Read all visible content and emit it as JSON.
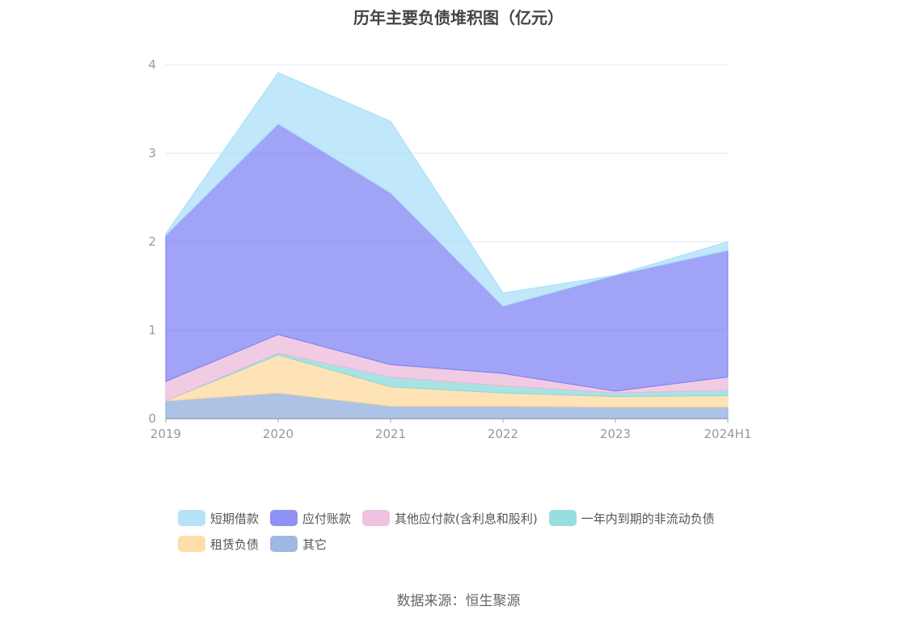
{
  "chart_data": {
    "type": "area",
    "stacked": true,
    "title": "历年主要负债堆积图（亿元）",
    "categories": [
      "2019",
      "2020",
      "2021",
      "2022",
      "2023",
      "2024H1"
    ],
    "ylim": [
      0,
      4
    ],
    "yticks": [
      "0",
      "1",
      "2",
      "3",
      "4"
    ],
    "grid": true,
    "legend_position": "bottom",
    "series": [
      {
        "name": "其它",
        "color": "#8eacdc",
        "values": [
          0.2,
          0.29,
          0.14,
          0.14,
          0.13,
          0.13
        ]
      },
      {
        "name": "租赁负债",
        "color": "#fdd89a",
        "values": [
          0.0,
          0.43,
          0.22,
          0.15,
          0.12,
          0.13
        ]
      },
      {
        "name": "一年内到期的非流动负债",
        "color": "#87d8d8",
        "values": [
          0.0,
          0.02,
          0.11,
          0.08,
          0.04,
          0.06
        ]
      },
      {
        "name": "其他应付款(含利息和股利)",
        "color": "#ebb7da",
        "values": [
          0.22,
          0.21,
          0.14,
          0.14,
          0.02,
          0.15
        ]
      },
      {
        "name": "应付账款",
        "color": "#7b7ff2",
        "values": [
          1.65,
          2.38,
          1.94,
          0.76,
          1.31,
          1.43
        ]
      },
      {
        "name": "短期借款",
        "color": "#a8def8",
        "values": [
          0.02,
          0.58,
          0.81,
          0.15,
          0.0,
          0.1
        ]
      }
    ],
    "legend_order": [
      "短期借款",
      "应付账款",
      "其他应付款(含利息和股利)",
      "一年内到期的非流动负债",
      "租赁负债",
      "其它"
    ]
  },
  "source_text": "数据来源：恒生聚源"
}
